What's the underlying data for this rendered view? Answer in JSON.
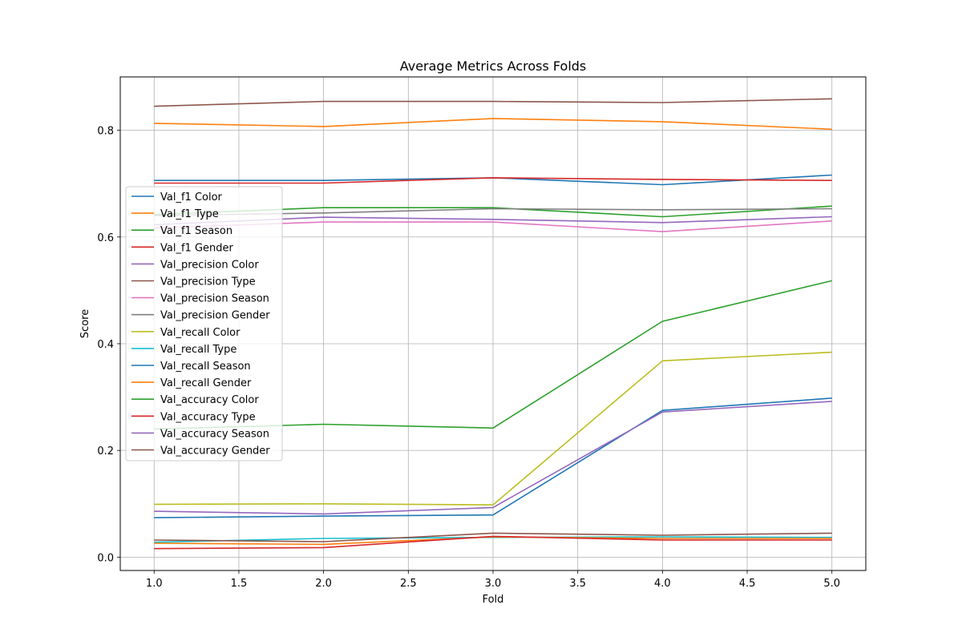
{
  "chart_data": {
    "type": "line",
    "title": "Average Metrics Across Folds",
    "xlabel": "Fold",
    "ylabel": "Score",
    "x": [
      1,
      2,
      3,
      4,
      5
    ],
    "xlim": [
      0.8,
      5.2
    ],
    "ylim": [
      -0.025,
      0.9
    ],
    "xticks": [
      "1.0",
      "1.5",
      "2.0",
      "2.5",
      "3.0",
      "3.5",
      "4.0",
      "4.5",
      "5.0"
    ],
    "yticks": [
      "0.0",
      "0.2",
      "0.4",
      "0.6",
      "0.8"
    ],
    "grid": true,
    "legend_position": "center-left",
    "series": [
      {
        "name": "Val_f1 Color",
        "color": "#1f77b4",
        "values": [
          0.706,
          0.706,
          0.711,
          0.698,
          0.716
        ]
      },
      {
        "name": "Val_f1 Type",
        "color": "#ff7f0e",
        "values": [
          0.813,
          0.807,
          0.822,
          0.816,
          0.802
        ]
      },
      {
        "name": "Val_f1 Season",
        "color": "#2ca02c",
        "values": [
          0.642,
          0.655,
          0.655,
          0.638,
          0.658
        ]
      },
      {
        "name": "Val_f1 Gender",
        "color": "#d62728",
        "values": [
          0.701,
          0.701,
          0.711,
          0.708,
          0.706
        ]
      },
      {
        "name": "Val_precision Color",
        "color": "#9467bd",
        "values": [
          0.623,
          0.637,
          0.633,
          0.627,
          0.638
        ]
      },
      {
        "name": "Val_precision Type",
        "color": "#8c564b",
        "values": [
          0.845,
          0.854,
          0.854,
          0.852,
          0.859
        ]
      },
      {
        "name": "Val_precision Season",
        "color": "#e377c2",
        "values": [
          0.617,
          0.628,
          0.628,
          0.61,
          0.63
        ]
      },
      {
        "name": "Val_precision Gender",
        "color": "#7f7f7f",
        "values": [
          0.64,
          0.645,
          0.653,
          0.651,
          0.653
        ]
      },
      {
        "name": "Val_recall Color",
        "color": "#bcbd22",
        "values": [
          0.099,
          0.1,
          0.098,
          0.368,
          0.384
        ]
      },
      {
        "name": "Val_recall Type",
        "color": "#17becf",
        "values": [
          0.028,
          0.035,
          0.037,
          0.038,
          0.037
        ]
      },
      {
        "name": "Val_recall Season",
        "color": "#1f77b4",
        "values": [
          0.074,
          0.077,
          0.079,
          0.275,
          0.298
        ]
      },
      {
        "name": "Val_recall Gender",
        "color": "#ff7f0e",
        "values": [
          0.026,
          0.024,
          0.038,
          0.035,
          0.035
        ]
      },
      {
        "name": "Val_accuracy Color",
        "color": "#2ca02c",
        "values": [
          0.24,
          0.249,
          0.242,
          0.442,
          0.518
        ]
      },
      {
        "name": "Val_accuracy Type",
        "color": "#d62728",
        "values": [
          0.016,
          0.018,
          0.039,
          0.032,
          0.032
        ]
      },
      {
        "name": "Val_accuracy Season",
        "color": "#9467bd",
        "values": [
          0.086,
          0.081,
          0.093,
          0.272,
          0.292
        ]
      },
      {
        "name": "Val_accuracy Gender",
        "color": "#8c564b",
        "values": [
          0.032,
          0.029,
          0.045,
          0.041,
          0.045
        ]
      }
    ]
  }
}
